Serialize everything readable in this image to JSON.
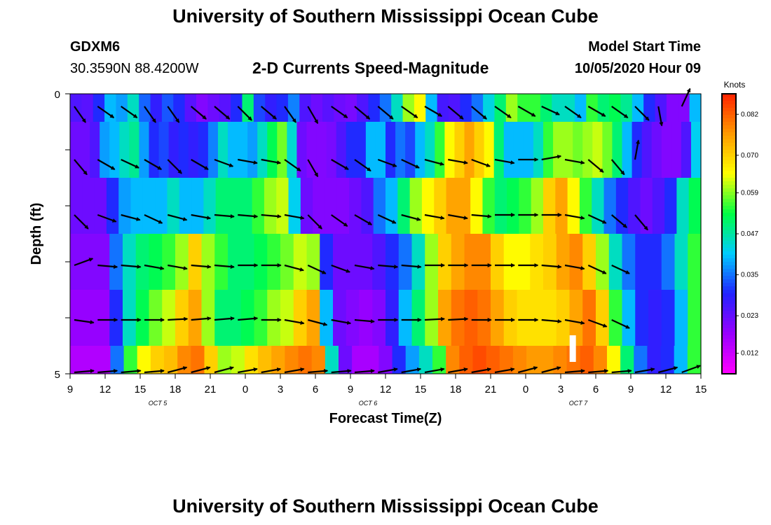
{
  "header": {
    "title": "University of Southern Mississippi Ocean Cube",
    "station_id": "GDXM6",
    "station_coords": "30.3590N 88.4200W",
    "subtitle": "2-D Currents Speed-Magnitude",
    "model_start_label": "Model Start Time",
    "model_start_value": "10/05/2020 Hour 09"
  },
  "footer": {
    "title": "University of Southern Mississippi Ocean Cube"
  },
  "chart_data": {
    "type": "heatmap",
    "title": "2-D Currents Speed-Magnitude",
    "xlabel": "Forecast Time(Z)",
    "ylabel": "Depth (ft)",
    "x_tick_labels": [
      "9",
      "12",
      "15",
      "18",
      "21",
      "0",
      "3",
      "6",
      "9",
      "12",
      "15",
      "18",
      "21",
      "0",
      "3",
      "6",
      "9",
      "12",
      "15"
    ],
    "x_date_labels": [
      {
        "label": "OCT 5",
        "after_tick_index": 2
      },
      {
        "label": "OCT 6",
        "after_tick_index": 8
      },
      {
        "label": "OCT 7",
        "after_tick_index": 14
      }
    ],
    "y_tick_labels": [
      {
        "value": 0,
        "label": "0"
      },
      {
        "value": 5,
        "label": "5"
      }
    ],
    "ylim": [
      0,
      5
    ],
    "x_range_hours": [
      0,
      54
    ],
    "depth_layers": 5,
    "colorbar": {
      "unit": "Knots",
      "vmin": 0.006,
      "vmax": 0.088,
      "ticks": [
        "0.082",
        "0.070",
        "0.059",
        "0.047",
        "0.035",
        "0.023",
        "0.012"
      ],
      "colors": [
        "#ff00ff",
        "#9900ff",
        "#2222ff",
        "#00ccff",
        "#00ff44",
        "#ffff00",
        "#ff9900",
        "#ff2200"
      ]
    },
    "speed_rows": [
      [
        0.025,
        0.024,
        0.03,
        0.04,
        0.038,
        0.045,
        0.034,
        0.028,
        0.033,
        0.03,
        0.024,
        0.02,
        0.022,
        0.024,
        0.03,
        0.05,
        0.032,
        0.028,
        0.03,
        0.036,
        0.025,
        0.022,
        0.024,
        0.022,
        0.021,
        0.025,
        0.03,
        0.035,
        0.045,
        0.06,
        0.065,
        0.04,
        0.026,
        0.025,
        0.03,
        0.035,
        0.043,
        0.05,
        0.06,
        0.055,
        0.055,
        0.05,
        0.045,
        0.045,
        0.04,
        0.055,
        0.05,
        0.052,
        0.048,
        0.04,
        0.03,
        0.025,
        0.02,
        0.02,
        0.04
      ],
      [
        0.022,
        0.022,
        0.025,
        0.038,
        0.04,
        0.045,
        0.048,
        0.038,
        0.03,
        0.032,
        0.028,
        0.03,
        0.028,
        0.03,
        0.036,
        0.045,
        0.04,
        0.04,
        0.038,
        0.045,
        0.052,
        0.058,
        0.044,
        0.022,
        0.02,
        0.02,
        0.021,
        0.025,
        0.03,
        0.03,
        0.04,
        0.04,
        0.03,
        0.035,
        0.032,
        0.04,
        0.045,
        0.055,
        0.065,
        0.07,
        0.075,
        0.07,
        0.065,
        0.05,
        0.04,
        0.04,
        0.04,
        0.045,
        0.055,
        0.06,
        0.06,
        0.058,
        0.06,
        0.062,
        0.058,
        0.05,
        0.04,
        0.03,
        0.025,
        0.022,
        0.02,
        0.02,
        0.025,
        0.042
      ],
      [
        0.022,
        0.022,
        0.022,
        0.03,
        0.038,
        0.04,
        0.04,
        0.04,
        0.045,
        0.04,
        0.04,
        0.045,
        0.05,
        0.05,
        0.05,
        0.055,
        0.06,
        0.062,
        0.042,
        0.022,
        0.02,
        0.02,
        0.02,
        0.022,
        0.025,
        0.035,
        0.04,
        0.05,
        0.06,
        0.065,
        0.07,
        0.075,
        0.075,
        0.065,
        0.055,
        0.05,
        0.052,
        0.055,
        0.06,
        0.07,
        0.075,
        0.065,
        0.055,
        0.045,
        0.035,
        0.03,
        0.025,
        0.022,
        0.025,
        0.03,
        0.045,
        0.052
      ],
      [
        0.02,
        0.02,
        0.02,
        0.035,
        0.045,
        0.05,
        0.052,
        0.055,
        0.06,
        0.07,
        0.06,
        0.055,
        0.05,
        0.05,
        0.052,
        0.055,
        0.058,
        0.062,
        0.06,
        0.03,
        0.022,
        0.022,
        0.022,
        0.025,
        0.03,
        0.035,
        0.045,
        0.06,
        0.07,
        0.075,
        0.078,
        0.078,
        0.07,
        0.065,
        0.065,
        0.068,
        0.07,
        0.075,
        0.078,
        0.07,
        0.06,
        0.045,
        0.035,
        0.03,
        0.03,
        0.035,
        0.045,
        0.055
      ],
      [
        0.018,
        0.018,
        0.018,
        0.03,
        0.045,
        0.052,
        0.058,
        0.062,
        0.07,
        0.075,
        0.06,
        0.05,
        0.05,
        0.052,
        0.055,
        0.06,
        0.062,
        0.07,
        0.075,
        0.04,
        0.022,
        0.02,
        0.018,
        0.02,
        0.028,
        0.04,
        0.05,
        0.06,
        0.075,
        0.08,
        0.082,
        0.08,
        0.075,
        0.07,
        0.068,
        0.068,
        0.068,
        0.07,
        0.075,
        0.08,
        0.07,
        0.055,
        0.04,
        0.03,
        0.028,
        0.03,
        0.04,
        0.055
      ],
      [
        0.015,
        0.015,
        0.015,
        0.035,
        0.055,
        0.065,
        0.07,
        0.072,
        0.078,
        0.08,
        0.07,
        0.06,
        0.062,
        0.068,
        0.072,
        0.075,
        0.078,
        0.08,
        0.078,
        0.045,
        0.022,
        0.016,
        0.016,
        0.02,
        0.03,
        0.038,
        0.045,
        0.055,
        0.078,
        0.082,
        0.084,
        0.082,
        0.08,
        0.078,
        0.076,
        0.076,
        0.078,
        0.08,
        0.082,
        0.078,
        0.065,
        0.05,
        0.035,
        0.028,
        0.03,
        0.04,
        0.055
      ]
    ],
    "vectors": {
      "columns_hours": [
        0,
        2,
        4,
        6,
        8,
        10,
        12,
        14,
        16,
        18,
        20,
        22,
        24,
        26,
        28,
        30,
        32,
        34,
        36,
        38,
        40,
        42,
        44,
        46,
        48,
        50,
        52,
        54
      ],
      "depth_rows": [
        0,
        1,
        2,
        3,
        4,
        5
      ],
      "angles_deg": [
        [
          55,
          35,
          35,
          55,
          55,
          40,
          40,
          45,
          40,
          55,
          60,
          35,
          40,
          40,
          35,
          30,
          40,
          40,
          35,
          30,
          25,
          35,
          30,
          35,
          45,
          80,
          -65
        ],
        [
          50,
          30,
          25,
          30,
          45,
          30,
          20,
          10,
          10,
          35,
          60,
          30,
          35,
          20,
          25,
          15,
          10,
          20,
          10,
          0,
          -10,
          10,
          40,
          50,
          -80
        ],
        [
          45,
          20,
          15,
          25,
          15,
          10,
          5,
          5,
          5,
          10,
          45,
          35,
          30,
          25,
          15,
          10,
          10,
          5,
          0,
          0,
          0,
          10,
          25,
          40,
          50
        ],
        [
          -20,
          5,
          5,
          10,
          10,
          5,
          5,
          0,
          0,
          15,
          25,
          20,
          10,
          5,
          5,
          0,
          0,
          0,
          0,
          0,
          5,
          10,
          25,
          25
        ],
        [
          8,
          0,
          0,
          0,
          -3,
          -5,
          -5,
          -5,
          0,
          10,
          15,
          10,
          5,
          0,
          0,
          -3,
          -3,
          0,
          0,
          0,
          5,
          10,
          20,
          25
        ],
        [
          -5,
          -5,
          -5,
          -5,
          -15,
          -15,
          -15,
          -10,
          -10,
          -10,
          -5,
          -5,
          -5,
          -10,
          -10,
          -10,
          -10,
          -10,
          -10,
          -15,
          -15,
          -5,
          -5,
          -5,
          -10,
          -15,
          -20
        ]
      ]
    },
    "missing_marker": {
      "x_hours": 43.0,
      "depth": 4.55
    }
  }
}
